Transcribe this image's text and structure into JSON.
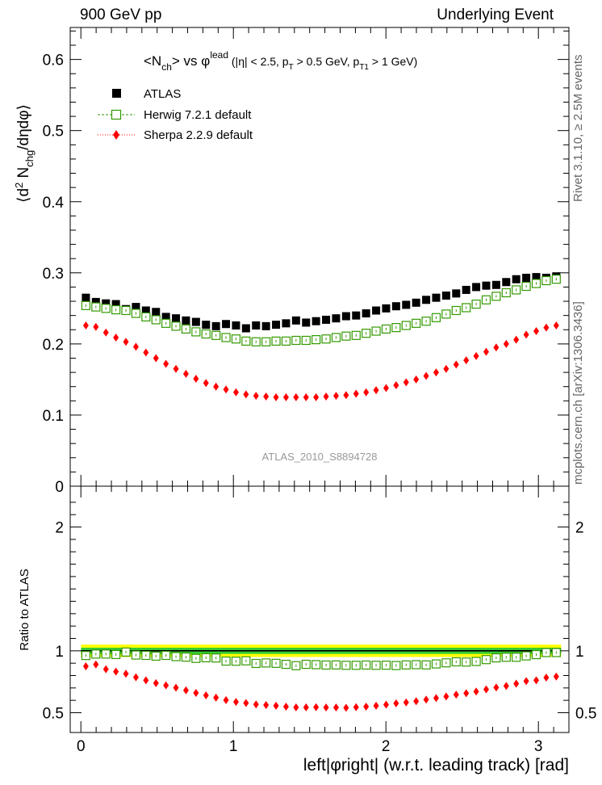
{
  "header": {
    "left": "900 GeV pp",
    "right": "Underlying Event"
  },
  "side_text": {
    "rivet": "Rivet 3.1.10, ≥ 2.5M events",
    "mcplots": "mcplots.cern.ch [arXiv:1306.3436]"
  },
  "chart_data": {
    "type": "scatter",
    "title": {
      "main": "<N",
      "sub1": "ch",
      "mid": "> vs φ",
      "sup": "lead",
      "cut1": " (|η| < 2.5, p",
      "sub2": "T",
      "cut2": " > 0.5 GeV, p",
      "sub3": "T1",
      "cut3": " > 1 GeV)"
    },
    "ylabel": {
      "a": "⟨d",
      "b": "2",
      "c": " N",
      "d": "chg",
      "e": "/dηdφ⟩"
    },
    "ratio_ylabel": "Ratio to ATLAS",
    "xlabel": "left|φright| (w.r.t. leading track) [rad]",
    "watermark": "ATLAS_2010_S8894728",
    "xlim": [
      -0.07,
      3.2
    ],
    "ylim": [
      0,
      0.645
    ],
    "ratio_ylim": [
      0.34,
      2.33
    ],
    "x_ticks": [
      0,
      1,
      2,
      3
    ],
    "x_tick_labels": [
      "0",
      "1",
      "2",
      "3"
    ],
    "y_ticks": [
      0,
      0.1,
      0.2,
      0.3,
      0.4,
      0.5,
      0.6
    ],
    "y_tick_labels": [
      "0",
      "0.1",
      "0.2",
      "0.3",
      "0.4",
      "0.5",
      "0.6"
    ],
    "ratio_ticks": [
      0.5,
      1,
      2
    ],
    "ratio_tick_labels": [
      "0.5",
      "1",
      "2"
    ],
    "ratio_band": {
      "inner": [
        0.975,
        1.025
      ],
      "outer": [
        0.95,
        1.05
      ],
      "inner_color": "#33cc33",
      "outer_color": "#ffff00"
    },
    "x": [
      0.0328,
      0.0984,
      0.1641,
      0.2297,
      0.2953,
      0.3609,
      0.4265,
      0.4922,
      0.5578,
      0.6234,
      0.689,
      0.7546,
      0.8203,
      0.8859,
      0.9515,
      1.0171,
      1.0827,
      1.1484,
      1.214,
      1.2796,
      1.3452,
      1.4108,
      1.4765,
      1.5421,
      1.6077,
      1.6733,
      1.7389,
      1.8046,
      1.8702,
      1.9358,
      2.0014,
      2.067,
      2.1327,
      2.1983,
      2.2639,
      2.3295,
      2.3951,
      2.4608,
      2.5264,
      2.592,
      2.6576,
      2.7232,
      2.7889,
      2.8545,
      2.9201,
      2.9857,
      3.0513,
      3.117
    ],
    "series": [
      {
        "name": "ATLAS",
        "color": "#000000",
        "marker": "filled-square",
        "values": [
          0.265,
          0.259,
          0.257,
          0.256,
          0.249,
          0.252,
          0.247,
          0.245,
          0.238,
          0.236,
          0.233,
          0.231,
          0.227,
          0.225,
          0.228,
          0.226,
          0.222,
          0.226,
          0.225,
          0.227,
          0.229,
          0.233,
          0.23,
          0.232,
          0.234,
          0.236,
          0.239,
          0.24,
          0.243,
          0.247,
          0.25,
          0.253,
          0.255,
          0.258,
          0.262,
          0.265,
          0.268,
          0.271,
          0.276,
          0.28,
          0.282,
          0.283,
          0.287,
          0.291,
          0.293,
          0.294,
          0.293,
          0.295
        ]
      },
      {
        "name": "Herwig 7.2.1 default",
        "color": "#339900",
        "marker": "open-square",
        "values": [
          0.254,
          0.252,
          0.25,
          0.248,
          0.247,
          0.243,
          0.238,
          0.234,
          0.229,
          0.225,
          0.221,
          0.217,
          0.214,
          0.212,
          0.209,
          0.207,
          0.204,
          0.203,
          0.203,
          0.204,
          0.204,
          0.205,
          0.205,
          0.206,
          0.207,
          0.209,
          0.211,
          0.212,
          0.215,
          0.218,
          0.221,
          0.223,
          0.226,
          0.229,
          0.232,
          0.237,
          0.242,
          0.247,
          0.251,
          0.256,
          0.262,
          0.267,
          0.272,
          0.276,
          0.281,
          0.285,
          0.289,
          0.291
        ]
      },
      {
        "name": "Sherpa 2.2.9 default",
        "color": "#ff0000",
        "marker": "diamond",
        "values": [
          0.226,
          0.224,
          0.216,
          0.209,
          0.203,
          0.196,
          0.188,
          0.18,
          0.172,
          0.165,
          0.158,
          0.151,
          0.145,
          0.14,
          0.136,
          0.132,
          0.129,
          0.127,
          0.126,
          0.125,
          0.125,
          0.125,
          0.125,
          0.125,
          0.126,
          0.127,
          0.128,
          0.13,
          0.132,
          0.135,
          0.138,
          0.142,
          0.146,
          0.15,
          0.155,
          0.16,
          0.165,
          0.171,
          0.177,
          0.183,
          0.189,
          0.195,
          0.2,
          0.206,
          0.213,
          0.218,
          0.223,
          0.226
        ]
      }
    ],
    "ratios": [
      {
        "name": "Herwig 7.2.1 default",
        "values": [
          0.962,
          0.974,
          0.974,
          0.97,
          0.99,
          0.966,
          0.963,
          0.957,
          0.963,
          0.953,
          0.949,
          0.939,
          0.944,
          0.942,
          0.917,
          0.916,
          0.919,
          0.898,
          0.902,
          0.899,
          0.891,
          0.88,
          0.891,
          0.888,
          0.885,
          0.886,
          0.883,
          0.883,
          0.885,
          0.883,
          0.884,
          0.881,
          0.886,
          0.888,
          0.886,
          0.894,
          0.903,
          0.911,
          0.909,
          0.914,
          0.929,
          0.943,
          0.948,
          0.948,
          0.959,
          0.969,
          0.986,
          0.986
        ]
      },
      {
        "name": "Sherpa 2.2.9 default",
        "values": [
          0.875,
          0.89,
          0.851,
          0.832,
          0.815,
          0.786,
          0.762,
          0.739,
          0.721,
          0.702,
          0.681,
          0.66,
          0.64,
          0.621,
          0.602,
          0.587,
          0.578,
          0.567,
          0.562,
          0.556,
          0.549,
          0.543,
          0.543,
          0.545,
          0.542,
          0.542,
          0.54,
          0.545,
          0.549,
          0.556,
          0.565,
          0.576,
          0.583,
          0.593,
          0.606,
          0.618,
          0.631,
          0.646,
          0.657,
          0.671,
          0.688,
          0.704,
          0.716,
          0.735,
          0.755,
          0.762,
          0.784,
          0.792
        ]
      }
    ]
  }
}
